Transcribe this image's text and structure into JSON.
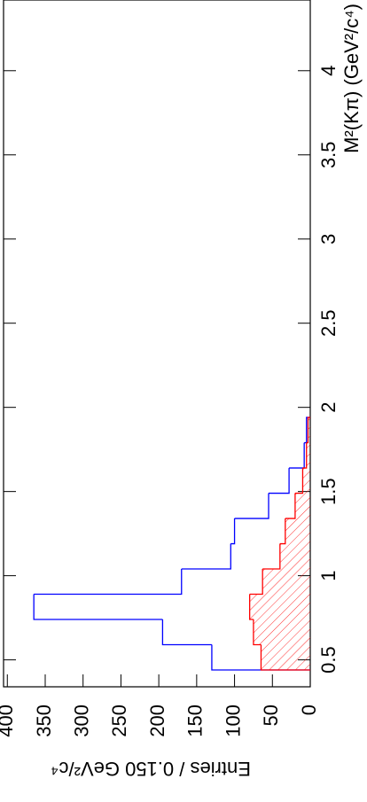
{
  "chart_data": {
    "type": "histogram",
    "x_label": "M²(Kπ) (GeV²/c⁴)",
    "y_label": "Entries / 0.150 GeV²/c⁴",
    "bins": [
      0.44,
      0.59,
      0.74,
      0.89,
      1.04,
      1.19,
      1.34,
      1.49,
      1.64,
      1.79,
      1.94
    ],
    "series": [
      {
        "color": "#0000ff",
        "values": [
          130,
          195,
          365,
          170,
          105,
          100,
          55,
          28,
          8,
          5
        ]
      },
      {
        "color": "#ff0000",
        "hatched": true,
        "values": [
          65,
          75,
          80,
          63,
          40,
          33,
          20,
          10,
          5,
          3
        ]
      }
    ],
    "xlim": [
      0.34,
      4.42
    ],
    "xticks": [
      0.5,
      1,
      1.5,
      2,
      2.5,
      3,
      3.5,
      4
    ],
    "ylim": [
      0,
      405
    ],
    "yticks": [
      0,
      50,
      100,
      150,
      200,
      250,
      300,
      350,
      400
    ]
  }
}
